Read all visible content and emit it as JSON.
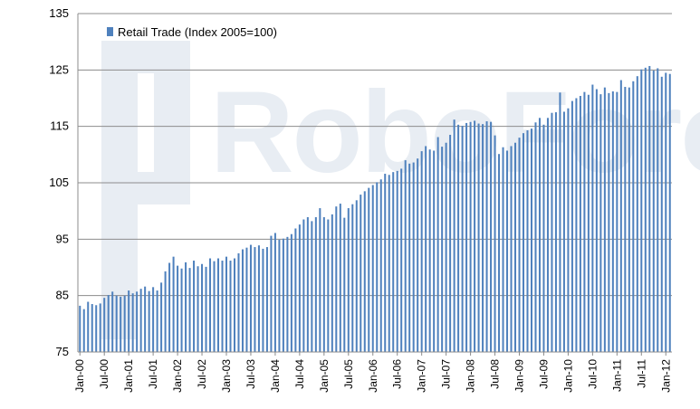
{
  "chart_data": {
    "type": "bar",
    "legend": {
      "label": "Retail Trade (Index 2005=100)",
      "position": "top-left"
    },
    "watermark": "RoboForex",
    "ylim": [
      75,
      135
    ],
    "yticks": [
      75,
      85,
      95,
      105,
      115,
      125,
      135
    ],
    "grid": true,
    "x_tick_labels": [
      "Jan-00",
      "Jul-00",
      "Jan-01",
      "Jul-01",
      "Jan-02",
      "Jul-02",
      "Jan-03",
      "Jul-03",
      "Jan-04",
      "Jul-04",
      "Jan-05",
      "Jul-05",
      "Jan-06",
      "Jul-06",
      "Jan-07",
      "Jul-07",
      "Jan-08",
      "Jul-08",
      "Jan-09",
      "Jul-09",
      "Jan-10",
      "Jul-10",
      "Jan-11",
      "Jul-11",
      "Jan-12"
    ],
    "series": [
      {
        "name": "Retail Trade (Index 2005=100)",
        "color": "#4f81bd",
        "values": [
          83.2,
          82.6,
          83.9,
          83.5,
          83.3,
          83.6,
          84.6,
          85.1,
          85.7,
          85.0,
          84.8,
          85.0,
          85.9,
          85.4,
          85.7,
          86.2,
          86.6,
          85.8,
          86.5,
          85.9,
          87.3,
          89.3,
          90.8,
          91.9,
          90.3,
          89.8,
          90.9,
          89.9,
          91.2,
          90.2,
          90.6,
          90.1,
          91.6,
          91.1,
          91.6,
          91.2,
          91.9,
          91.2,
          91.6,
          92.5,
          93.2,
          93.5,
          94.0,
          93.6,
          93.9,
          93.3,
          93.6,
          95.6,
          96.1,
          94.9,
          95.1,
          95.4,
          95.9,
          96.9,
          97.6,
          98.5,
          98.9,
          98.2,
          98.9,
          100.5,
          98.9,
          98.5,
          99.4,
          100.8,
          101.3,
          98.8,
          100.5,
          101.2,
          101.9,
          102.9,
          103.5,
          104.1,
          104.6,
          105.1,
          105.6,
          106.6,
          106.4,
          106.9,
          107.1,
          107.5,
          109.0,
          108.4,
          108.6,
          109.3,
          110.6,
          111.5,
          110.9,
          110.7,
          113.1,
          111.4,
          112.1,
          113.5,
          116.2,
          115.3,
          115.1,
          115.6,
          115.8,
          116.0,
          115.5,
          115.4,
          115.9,
          115.8,
          113.4,
          110.1,
          111.3,
          110.7,
          111.5,
          112.1,
          113.0,
          113.8,
          114.3,
          114.6,
          115.7,
          116.5,
          115.3,
          116.5,
          117.4,
          117.5,
          121.0,
          117.6,
          118.2,
          119.5,
          120.0,
          120.4,
          121.1,
          120.6,
          122.4,
          121.6,
          120.7,
          121.9,
          120.9,
          121.2,
          121.1,
          123.2,
          122.0,
          121.9,
          123.0,
          123.9,
          125.1,
          125.4,
          125.7,
          124.9,
          125.3,
          123.8,
          124.5,
          124.3
        ]
      }
    ]
  }
}
